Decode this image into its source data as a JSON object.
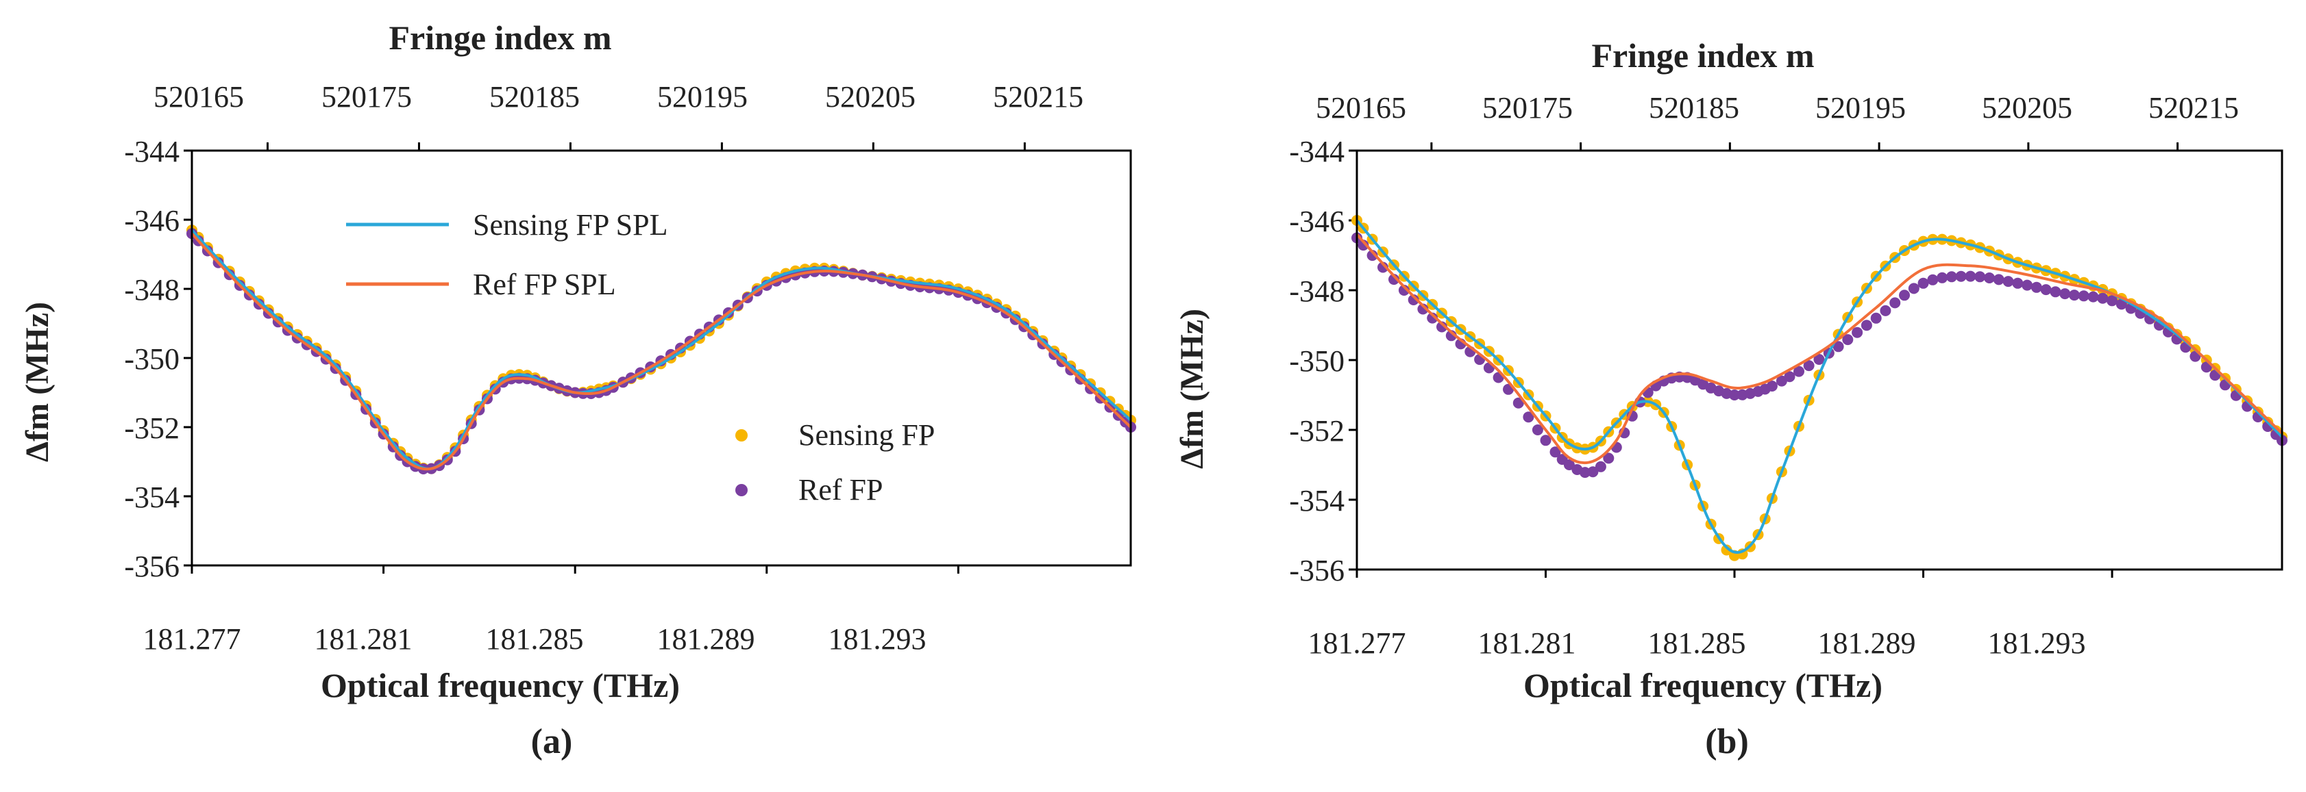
{
  "colors": {
    "sensing_points": "#f7b500",
    "ref_points": "#7a3fa0",
    "sensing_spline": "#2aa7d9",
    "ref_spline": "#f26f3a"
  },
  "chart_data": [
    {
      "type": "scatter",
      "panel_label": "(a)",
      "title_top": "Fringe index m",
      "xlabel": "Optical frequency (THz)",
      "ylabel": "Δfm (MHz)",
      "xlim": [
        181.277,
        181.2966
      ],
      "ylim": [
        -356,
        -344
      ],
      "top_xlim": [
        520160,
        520222
      ],
      "x_ticks": [
        "181.277",
        "181.281",
        "181.285",
        "181.289",
        "181.293"
      ],
      "y_ticks": [
        "-344",
        "-346",
        "-348",
        "-350",
        "-352",
        "-354",
        "-356"
      ],
      "top_ticks": [
        "520165",
        "520175",
        "520185",
        "520195",
        "520205",
        "520215"
      ],
      "legend": [
        {
          "label": "Sensing FP SPL",
          "kind": "line",
          "series": "sensing_spline"
        },
        {
          "label": "Ref FP SPL",
          "kind": "line",
          "series": "ref_spline"
        },
        {
          "label": "Sensing FP",
          "kind": "point",
          "series": "sensing_points"
        },
        {
          "label": "Ref FP",
          "kind": "point",
          "series": "ref_points"
        }
      ],
      "series": [
        {
          "name": "Ref FP",
          "key": "ref_points",
          "x": [
            181.277,
            181.278,
            181.279,
            181.28,
            181.281,
            181.2815,
            181.282,
            181.2825,
            181.283,
            181.2835,
            181.284,
            181.2845,
            181.285,
            181.2855,
            181.286,
            181.287,
            181.288,
            181.289,
            181.29,
            181.291,
            181.292,
            181.293,
            181.294,
            181.295,
            181.2966
          ],
          "y": [
            -346.4,
            -347.9,
            -349.2,
            -350.3,
            -352.2,
            -353.0,
            -353.2,
            -352.7,
            -351.5,
            -350.7,
            -350.6,
            -350.8,
            -351.0,
            -351.0,
            -350.7,
            -349.9,
            -348.9,
            -347.9,
            -347.5,
            -347.6,
            -347.9,
            -348.1,
            -348.7,
            -349.9,
            -352.0
          ]
        },
        {
          "name": "Sensing FP",
          "key": "sensing_points",
          "x": [
            181.277,
            181.278,
            181.279,
            181.28,
            181.281,
            181.2815,
            181.282,
            181.2825,
            181.283,
            181.2835,
            181.284,
            181.2845,
            181.285,
            181.2855,
            181.286,
            181.287,
            181.288,
            181.289,
            181.29,
            181.291,
            181.292,
            181.293,
            181.294,
            181.295,
            181.2966
          ],
          "y": [
            -346.3,
            -347.8,
            -349.1,
            -350.2,
            -352.1,
            -352.9,
            -353.2,
            -352.6,
            -351.4,
            -350.6,
            -350.5,
            -350.8,
            -351.0,
            -350.9,
            -350.7,
            -350.0,
            -349.0,
            -347.8,
            -347.4,
            -347.6,
            -347.8,
            -348.0,
            -348.6,
            -349.8,
            -351.8
          ]
        },
        {
          "name": "Sensing FP SPL",
          "key": "sensing_spline",
          "x": [
            181.277,
            181.278,
            181.279,
            181.28,
            181.281,
            181.2815,
            181.282,
            181.2825,
            181.283,
            181.2835,
            181.284,
            181.2845,
            181.285,
            181.2855,
            181.286,
            181.287,
            181.288,
            181.289,
            181.29,
            181.291,
            181.292,
            181.293,
            181.294,
            181.295,
            181.2966
          ],
          "y": [
            -346.3,
            -347.8,
            -349.1,
            -350.2,
            -352.1,
            -352.9,
            -353.2,
            -352.6,
            -351.4,
            -350.6,
            -350.5,
            -350.8,
            -351.0,
            -350.9,
            -350.7,
            -350.0,
            -349.0,
            -347.8,
            -347.4,
            -347.6,
            -347.8,
            -348.0,
            -348.6,
            -349.8,
            -351.8
          ]
        },
        {
          "name": "Ref FP SPL",
          "key": "ref_spline",
          "x": [
            181.277,
            181.278,
            181.279,
            181.28,
            181.281,
            181.2815,
            181.282,
            181.2825,
            181.283,
            181.2835,
            181.284,
            181.2845,
            181.285,
            181.2855,
            181.286,
            181.287,
            181.288,
            181.289,
            181.29,
            181.291,
            181.292,
            181.293,
            181.294,
            181.295,
            181.2966
          ],
          "y": [
            -346.4,
            -347.9,
            -349.2,
            -350.3,
            -352.2,
            -353.0,
            -353.2,
            -352.7,
            -351.5,
            -350.7,
            -350.6,
            -350.8,
            -351.0,
            -351.0,
            -350.7,
            -349.9,
            -348.9,
            -347.9,
            -347.5,
            -347.6,
            -347.9,
            -348.1,
            -348.7,
            -349.9,
            -352.0
          ]
        }
      ]
    },
    {
      "type": "scatter",
      "panel_label": "(b)",
      "title_top": "Fringe index m",
      "xlabel": "Optical frequency (THz)",
      "ylabel": "Δfm (MHz)",
      "xlim": [
        181.277,
        181.2966
      ],
      "ylim": [
        -356,
        -344
      ],
      "top_xlim": [
        520160,
        520222
      ],
      "x_ticks": [
        "181.277",
        "181.281",
        "181.285",
        "181.289",
        "181.293"
      ],
      "y_ticks": [
        "-344",
        "-346",
        "-348",
        "-350",
        "-352",
        "-354",
        "-356"
      ],
      "top_ticks": [
        "520165",
        "520175",
        "520185",
        "520195",
        "520205",
        "520215"
      ],
      "legend": [],
      "series": [
        {
          "name": "Ref FP",
          "key": "ref_points",
          "x": [
            181.277,
            181.278,
            181.279,
            181.28,
            181.281,
            181.2815,
            181.282,
            181.2825,
            181.283,
            181.2835,
            181.284,
            181.2845,
            181.285,
            181.2855,
            181.286,
            181.287,
            181.288,
            181.289,
            181.29,
            181.291,
            181.292,
            181.293,
            181.294,
            181.295,
            181.2966
          ],
          "y": [
            -346.5,
            -348.0,
            -349.3,
            -350.5,
            -352.3,
            -353.0,
            -353.2,
            -352.5,
            -351.2,
            -350.6,
            -350.5,
            -350.8,
            -351.0,
            -350.9,
            -350.6,
            -349.8,
            -348.8,
            -347.8,
            -347.6,
            -347.8,
            -348.1,
            -348.3,
            -349.0,
            -350.2,
            -352.3
          ]
        },
        {
          "name": "Sensing FP",
          "key": "sensing_points",
          "x": [
            181.277,
            181.278,
            181.279,
            181.28,
            181.281,
            181.2815,
            181.282,
            181.2825,
            181.283,
            181.2835,
            181.284,
            181.2845,
            181.285,
            181.2855,
            181.286,
            181.287,
            181.288,
            181.289,
            181.29,
            181.291,
            181.292,
            181.293,
            181.294,
            181.295,
            181.2966
          ],
          "y": [
            -346.0,
            -347.6,
            -348.9,
            -350.0,
            -351.6,
            -352.4,
            -352.5,
            -351.8,
            -351.2,
            -351.5,
            -353.0,
            -354.7,
            -355.6,
            -355.0,
            -353.2,
            -349.8,
            -347.6,
            -346.6,
            -346.7,
            -347.2,
            -347.6,
            -348.1,
            -348.9,
            -350.0,
            -352.2
          ]
        },
        {
          "name": "Sensing FP SPL",
          "key": "sensing_spline",
          "x": [
            181.277,
            181.278,
            181.279,
            181.28,
            181.281,
            181.2815,
            181.282,
            181.2825,
            181.283,
            181.2835,
            181.284,
            181.2845,
            181.285,
            181.2855,
            181.286,
            181.287,
            181.288,
            181.289,
            181.29,
            181.291,
            181.292,
            181.293,
            181.294,
            181.295,
            181.2966
          ],
          "y": [
            -346.0,
            -347.6,
            -348.9,
            -350.0,
            -351.6,
            -352.4,
            -352.5,
            -351.8,
            -351.2,
            -351.5,
            -353.0,
            -354.7,
            -355.5,
            -355.0,
            -353.2,
            -349.8,
            -347.6,
            -346.6,
            -346.7,
            -347.2,
            -347.6,
            -348.1,
            -348.9,
            -350.0,
            -352.2
          ]
        },
        {
          "name": "Ref FP SPL",
          "key": "ref_spline",
          "x": [
            181.277,
            181.278,
            181.279,
            181.28,
            181.281,
            181.2815,
            181.282,
            181.2825,
            181.283,
            181.2835,
            181.284,
            181.2845,
            181.285,
            181.2855,
            181.286,
            181.287,
            181.288,
            181.289,
            181.29,
            181.291,
            181.292,
            181.293,
            181.294,
            181.295,
            181.2966
          ],
          "y": [
            -346.4,
            -347.9,
            -349.2,
            -350.3,
            -352.0,
            -352.8,
            -352.9,
            -352.3,
            -351.0,
            -350.5,
            -350.4,
            -350.6,
            -350.8,
            -350.7,
            -350.4,
            -349.6,
            -348.5,
            -347.4,
            -347.3,
            -347.5,
            -347.8,
            -348.1,
            -348.8,
            -350.0,
            -352.1
          ]
        }
      ]
    }
  ]
}
